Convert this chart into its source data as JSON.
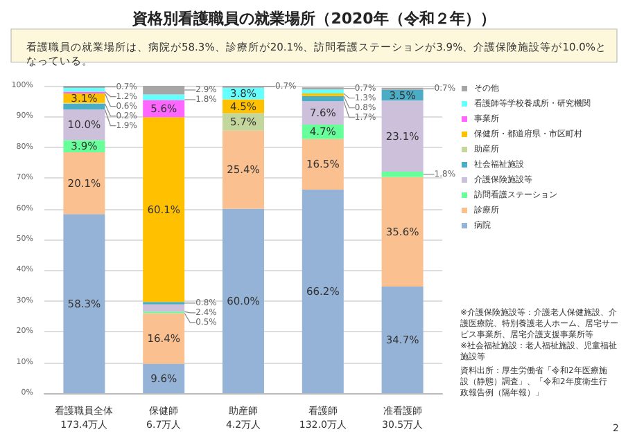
{
  "chart_data": {
    "type": "bar",
    "stacked": true,
    "title": "資格別看護職員の就業場所（2020年（令和２年））",
    "subtitle": "看護職員の就業場所は、病院が58.3%、診療所が20.1%、訪問看護ステーションが3.9%、介護保険施設等が10.0%となっている。",
    "categories": [
      "看護職員全体\n173.4万人",
      "保健師\n6.7万人",
      "助産師\n4.2万人",
      "看護師\n132.0万人",
      "准看護師\n30.5万人"
    ],
    "ylim": [
      0,
      100
    ],
    "yticks": [
      {
        "value": 0,
        "label": "0%"
      },
      {
        "value": 10,
        "label": "10%"
      },
      {
        "value": 20,
        "label": "20%"
      },
      {
        "value": 30,
        "label": "30%"
      },
      {
        "value": 40,
        "label": "40%"
      },
      {
        "value": 50,
        "label": "50%"
      },
      {
        "value": 60,
        "label": "60%"
      },
      {
        "value": 70,
        "label": "70%"
      },
      {
        "value": 80,
        "label": "80%"
      },
      {
        "value": 90,
        "label": "90%"
      },
      {
        "value": 100,
        "label": "100%"
      }
    ],
    "grid": "y",
    "legend": "right",
    "series": [
      {
        "name": "病院",
        "color": "#95b3d7",
        "values": [
          58.3,
          9.6,
          60.0,
          66.2,
          34.7
        ],
        "value_labels": [
          "58.3%",
          "9.6%",
          "60.0%",
          "66.2%",
          "34.7%"
        ]
      },
      {
        "name": "診療所",
        "color": "#fac090",
        "values": [
          20.1,
          16.4,
          25.4,
          16.5,
          35.6
        ],
        "value_labels": [
          "20.1%",
          "16.4%",
          "25.4%",
          "16.5%",
          "35.6%"
        ]
      },
      {
        "name": "訪問看護ステーション",
        "color": "#66ff99",
        "values": [
          3.9,
          0.5,
          null,
          4.7,
          1.8
        ],
        "value_labels": [
          "3.9%",
          "0.5%",
          null,
          "4.7%",
          "1.8%"
        ]
      },
      {
        "name": "介護保険施設等",
        "color": "#ccc0da",
        "values": [
          10.0,
          2.4,
          null,
          7.6,
          23.1
        ],
        "value_labels": [
          "10.0%",
          "2.4%",
          null,
          "7.6%",
          "23.1%"
        ]
      },
      {
        "name": "社会福祉施設",
        "color": "#4bacc6",
        "values": [
          1.9,
          0.8,
          null,
          1.7,
          3.5
        ],
        "value_labels": [
          "1.9%",
          "0.8%",
          null,
          "1.7%",
          "3.5%"
        ]
      },
      {
        "name": "助産所",
        "color": "#c3d69b",
        "values": [
          0.2,
          null,
          5.7,
          null,
          null
        ],
        "value_labels": [
          "0.2%",
          null,
          "5.7%",
          null,
          null
        ]
      },
      {
        "name": "保健所・都道府県・市区町村",
        "color": "#ffc000",
        "values": [
          3.1,
          60.1,
          4.5,
          0.8,
          null
        ],
        "value_labels": [
          "3.1%",
          "60.1%",
          "4.5%",
          "0.8%",
          null
        ]
      },
      {
        "name": "事業所",
        "color": "#ff66ff",
        "values": [
          0.6,
          5.6,
          null,
          null,
          null
        ],
        "value_labels": [
          "0.6%",
          "5.6%",
          null,
          null,
          null
        ]
      },
      {
        "name": "看護師等学校養成所・研究機関",
        "color": "#66ffff",
        "values": [
          1.2,
          1.8,
          3.8,
          1.3,
          null
        ],
        "value_labels": [
          "1.2%",
          "1.8%",
          "3.8%",
          "1.3%",
          null
        ]
      },
      {
        "name": "その他",
        "color": "#a6a6a6",
        "values": [
          0.7,
          2.9,
          0.7,
          0.7,
          0.7
        ],
        "value_labels": [
          "0.7%",
          "2.9%",
          "0.7%",
          "0.7%",
          "0.7%"
        ]
      }
    ],
    "annotations": [
      "※介護保険施設等：介護老人保健施設、介護医療院、特別養護老人ホーム、居宅サービス事業所、居宅介護支援事業所等",
      "※社会福祉施設：老人福祉施設、児童福祉施設等",
      "資料出所：厚生労働省「令和2年医療施設（静態）調査」、「令和2年度衛生行政報告例（隔年報）」",
      "2"
    ]
  }
}
